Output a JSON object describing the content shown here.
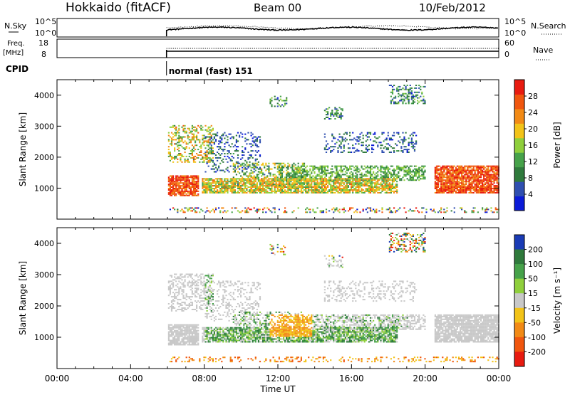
{
  "header": {
    "station": "Hokkaido (fitACF)",
    "beam": "Beam 00",
    "date": "10/Feb/2012"
  },
  "strip": {
    "nsky_label": "N.Sky",
    "nsky_ticks": [
      "10^5",
      "10^0"
    ],
    "nsearch_ticks": [
      "10^5",
      "10^0"
    ],
    "nsearch_label": "N.Search",
    "freq_label": "Freq.",
    "freq_unit": "[MHz]",
    "freq_ticks": [
      "18",
      "8"
    ],
    "nave_ticks": [
      "60",
      "0"
    ],
    "nave_label": "Nave",
    "cpid_label": "CPID",
    "cpid_value": "normal (fast) 151"
  },
  "chart_data": [
    {
      "type": "heatmap",
      "quantity": "power",
      "xlabel": "Time UT",
      "ylabel": "Slant Range [km]",
      "xlim": [
        0,
        24
      ],
      "ylim": [
        0,
        4500
      ],
      "x_ticks": [
        "00:00",
        "04:00",
        "08:00",
        "12:00",
        "16:00",
        "20:00",
        "00:00"
      ],
      "y_ticks": [
        "1000",
        "2000",
        "3000",
        "4000"
      ],
      "colorbar": {
        "label": "Power [dB]",
        "range": [
          0,
          32
        ],
        "ticks": [
          "4",
          "8",
          "12",
          "16",
          "20",
          "24",
          "28"
        ],
        "colors": [
          "#0b1bd8",
          "#2f4fb0",
          "#2f7a3c",
          "#46a24a",
          "#8fcf3c",
          "#f2c318",
          "#f28a15",
          "#f0560e",
          "#e81b10"
        ]
      },
      "data_start_ut": 5.95
    },
    {
      "type": "heatmap",
      "quantity": "velocity",
      "xlabel": "Time UT",
      "ylabel": "Slant Range [km]",
      "xlim": [
        0,
        24
      ],
      "ylim": [
        0,
        4500
      ],
      "x_ticks": [
        "00:00",
        "04:00",
        "08:00",
        "12:00",
        "16:00",
        "20:00",
        "00:00"
      ],
      "y_ticks": [
        "1000",
        "2000",
        "3000",
        "4000"
      ],
      "colorbar": {
        "label": "Velocity [m s⁻¹]",
        "ticks": [
          "200",
          "100",
          "50",
          "15",
          "-15",
          "-50",
          "-100",
          "-200"
        ],
        "colors": [
          "#1a3bb5",
          "#2f7a3c",
          "#46a24a",
          "#8fcf3c",
          "#c8c8c8",
          "#f2c318",
          "#f28a15",
          "#f0560e",
          "#e81b10"
        ]
      },
      "data_start_ut": 5.95
    }
  ]
}
